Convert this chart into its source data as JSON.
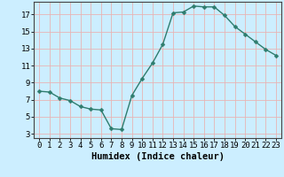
{
  "x": [
    0,
    1,
    2,
    3,
    4,
    5,
    6,
    7,
    8,
    9,
    10,
    11,
    12,
    13,
    14,
    15,
    16,
    17,
    18,
    19,
    20,
    21,
    22,
    23
  ],
  "y": [
    8.0,
    7.9,
    7.2,
    6.9,
    6.2,
    5.9,
    5.8,
    3.6,
    3.5,
    7.5,
    9.5,
    11.3,
    13.5,
    17.2,
    17.3,
    18.0,
    17.9,
    17.9,
    16.9,
    15.6,
    14.7,
    13.8,
    12.9,
    12.2
  ],
  "line_color": "#2e7d6e",
  "marker": "D",
  "markersize": 2.5,
  "bg_color": "#cceeff",
  "grid_color": "#e8b4b4",
  "xlabel": "Humidex (Indice chaleur)",
  "xlim": [
    -0.5,
    23.5
  ],
  "ylim": [
    2.5,
    18.5
  ],
  "yticks": [
    3,
    5,
    7,
    9,
    11,
    13,
    15,
    17
  ],
  "xticks": [
    0,
    1,
    2,
    3,
    4,
    5,
    6,
    7,
    8,
    9,
    10,
    11,
    12,
    13,
    14,
    15,
    16,
    17,
    18,
    19,
    20,
    21,
    22,
    23
  ],
  "xlabel_fontsize": 7.5,
  "tick_fontsize": 6.5
}
